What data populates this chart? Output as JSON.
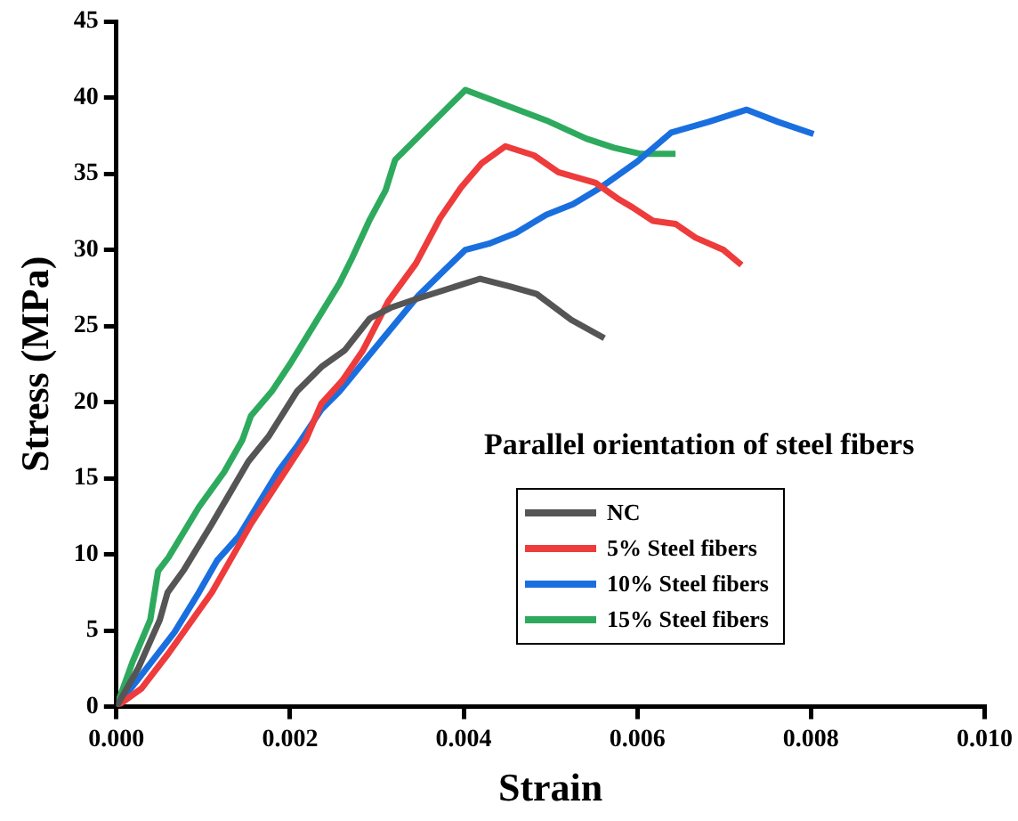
{
  "chart_data": {
    "type": "line",
    "xlabel": "Strain",
    "ylabel": "Stress (MPa)",
    "legend_title": "Parallel orientation of steel fibers",
    "legend": "bottom",
    "grid": false,
    "marker": "none",
    "line_style": "solid",
    "xlim": [
      0,
      0.01
    ],
    "xticks": [
      {
        "value": 0,
        "label": "0.000"
      },
      {
        "value": 0.002,
        "label": "0.002"
      },
      {
        "value": 0.004,
        "label": "0.004"
      },
      {
        "value": 0.006,
        "label": "0.006"
      },
      {
        "value": 0.008,
        "label": "0.008"
      },
      {
        "value": 0.01,
        "label": "0.010"
      }
    ],
    "ylim": [
      0,
      45
    ],
    "yticks": [
      0,
      5,
      10,
      15,
      20,
      25,
      30,
      35,
      40,
      45
    ],
    "series": [
      {
        "name": "NC",
        "color": "#555555",
        "x": [
          0,
          0.00025,
          0.0005,
          0.00059,
          0.00078,
          0.0011,
          0.00152,
          0.00176,
          0.00208,
          0.00236,
          0.00263,
          0.00292,
          0.00316,
          0.00347,
          0.00419,
          0.00453,
          0.00484,
          0.00524,
          0.00562
        ],
        "values": [
          0,
          2.5,
          5.7,
          7.5,
          9.0,
          12.0,
          16.1,
          17.8,
          20.7,
          22.3,
          23.4,
          25.5,
          26.2,
          26.8,
          28.1,
          27.6,
          27.1,
          25.4,
          24.2
        ]
      },
      {
        "name": "5% Steel fibers",
        "color": "#ee3b3b",
        "x": [
          0,
          0.00029,
          0.0006,
          0.0011,
          0.0013,
          0.00155,
          0.00187,
          0.00218,
          0.00236,
          0.0026,
          0.00284,
          0.00313,
          0.00345,
          0.00373,
          0.00397,
          0.00421,
          0.00448,
          0.00481,
          0.00509,
          0.00552,
          0.00579,
          0.00594,
          0.00618,
          0.00644,
          0.00667,
          0.00699,
          0.0072
        ],
        "values": [
          0,
          1.2,
          3.5,
          7.5,
          9.5,
          12.0,
          14.8,
          17.5,
          19.9,
          21.4,
          23.4,
          26.6,
          29.1,
          32.1,
          34.1,
          35.7,
          36.8,
          36.2,
          35.1,
          34.4,
          33.3,
          32.8,
          31.9,
          31.7,
          30.8,
          30.0,
          29.0
        ]
      },
      {
        "name": "10% Steel fibers",
        "color": "#1a6fdf",
        "x": [
          0,
          0.00025,
          0.00067,
          0.00095,
          0.00116,
          0.00141,
          0.00187,
          0.00208,
          0.00236,
          0.00257,
          0.00316,
          0.00348,
          0.00402,
          0.00429,
          0.0046,
          0.00495,
          0.00526,
          0.00558,
          0.006,
          0.00639,
          0.00682,
          0.00726,
          0.00762,
          0.00803
        ],
        "values": [
          0,
          1.8,
          4.9,
          7.5,
          9.6,
          11.2,
          15.5,
          17.1,
          19.5,
          20.7,
          24.8,
          27.0,
          30.0,
          30.4,
          31.1,
          32.3,
          33.0,
          34.1,
          35.8,
          37.7,
          38.4,
          39.2,
          38.4,
          37.6
        ]
      },
      {
        "name": "15% Steel fibers",
        "color": "#2eaa5e",
        "x": [
          0,
          0.00019,
          0.00039,
          0.00048,
          0.0006,
          0.00095,
          0.00124,
          0.00145,
          0.00155,
          0.00179,
          0.002,
          0.00257,
          0.00271,
          0.00292,
          0.0031,
          0.00321,
          0.00402,
          0.00495,
          0.00541,
          0.00573,
          0.00604,
          0.00644
        ],
        "values": [
          0,
          3.0,
          5.7,
          8.9,
          9.8,
          13.1,
          15.4,
          17.5,
          19.1,
          20.7,
          22.5,
          27.8,
          29.4,
          32.0,
          33.9,
          35.9,
          40.5,
          38.5,
          37.3,
          36.7,
          36.3,
          36.3
        ]
      }
    ]
  }
}
